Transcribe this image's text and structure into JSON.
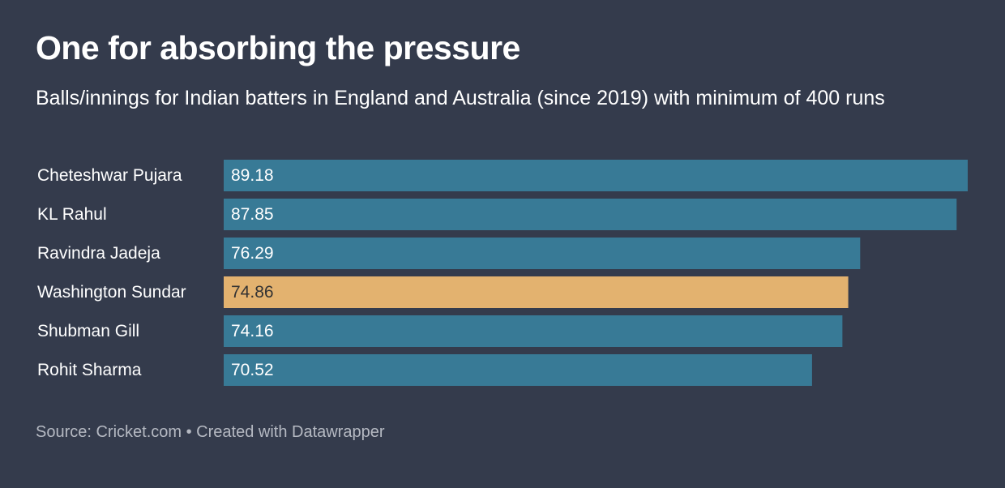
{
  "chart_data": {
    "type": "bar",
    "title": "One for absorbing the pressure",
    "subtitle": "Balls/innings for Indian batters in England and Australia (since 2019) with minimum of 400 runs",
    "categories": [
      "Cheteshwar Pujara",
      "KL Rahul",
      "Ravindra Jadeja",
      "Washington Sundar",
      "Shubman Gill",
      "Rohit Sharma"
    ],
    "values": [
      89.18,
      87.85,
      76.29,
      74.86,
      74.16,
      70.52
    ],
    "colors": [
      "#387a96",
      "#387a96",
      "#387a96",
      "#e3b26f",
      "#387a96",
      "#387a96"
    ],
    "footer": "Source: Cricket.com • Created with Datawrapper"
  }
}
